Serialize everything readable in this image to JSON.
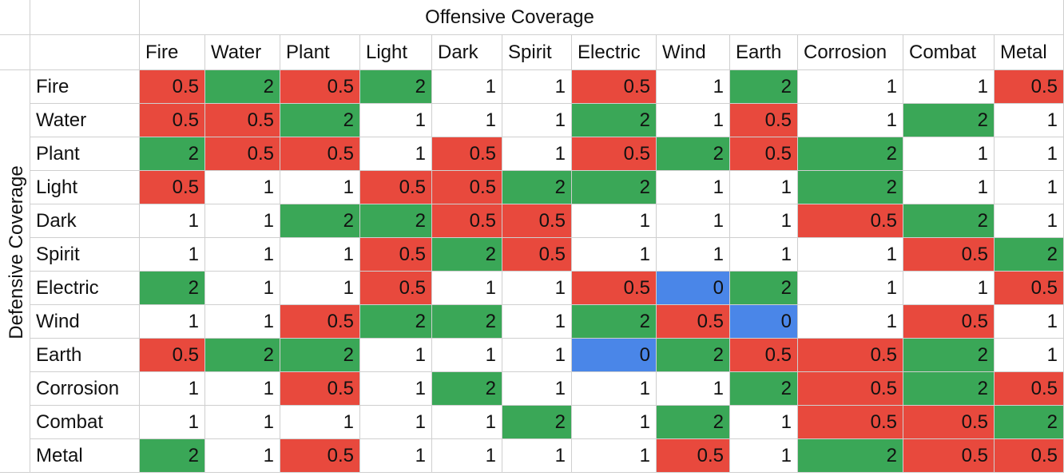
{
  "table": {
    "title": "Offensive Coverage",
    "row_axis_label": "Defensive Coverage",
    "columns": [
      "Fire",
      "Water",
      "Plant",
      "Light",
      "Dark",
      "Spirit",
      "Electric",
      "Wind",
      "Earth",
      "Corrosion",
      "Combat",
      "Metal"
    ],
    "rows": [
      {
        "label": "Fire",
        "values": [
          0.5,
          2,
          0.5,
          2,
          1,
          1,
          0.5,
          1,
          2,
          1,
          1,
          0.5
        ]
      },
      {
        "label": "Water",
        "values": [
          0.5,
          0.5,
          2,
          1,
          1,
          1,
          2,
          1,
          0.5,
          1,
          2,
          1
        ]
      },
      {
        "label": "Plant",
        "values": [
          2,
          0.5,
          0.5,
          1,
          0.5,
          1,
          0.5,
          2,
          0.5,
          2,
          1,
          1
        ]
      },
      {
        "label": "Light",
        "values": [
          0.5,
          1,
          1,
          0.5,
          0.5,
          2,
          2,
          1,
          1,
          2,
          1,
          1
        ]
      },
      {
        "label": "Dark",
        "values": [
          1,
          1,
          2,
          2,
          0.5,
          0.5,
          1,
          1,
          1,
          0.5,
          2,
          1
        ]
      },
      {
        "label": "Spirit",
        "values": [
          1,
          1,
          1,
          0.5,
          2,
          0.5,
          1,
          1,
          1,
          1,
          0.5,
          2
        ]
      },
      {
        "label": "Electric",
        "values": [
          2,
          1,
          1,
          0.5,
          1,
          1,
          0.5,
          0,
          2,
          1,
          1,
          0.5
        ]
      },
      {
        "label": "Wind",
        "values": [
          1,
          1,
          0.5,
          2,
          2,
          1,
          2,
          0.5,
          0,
          1,
          0.5,
          1
        ]
      },
      {
        "label": "Earth",
        "values": [
          0.5,
          2,
          2,
          1,
          1,
          1,
          0,
          2,
          0.5,
          0.5,
          2,
          1
        ]
      },
      {
        "label": "Corrosion",
        "values": [
          1,
          1,
          0.5,
          1,
          2,
          1,
          1,
          1,
          2,
          0.5,
          2,
          0.5
        ]
      },
      {
        "label": "Combat",
        "values": [
          1,
          1,
          1,
          1,
          1,
          2,
          1,
          2,
          1,
          0.5,
          0.5,
          2
        ]
      },
      {
        "label": "Metal",
        "values": [
          2,
          1,
          0.5,
          1,
          1,
          1,
          1,
          0.5,
          1,
          2,
          0.5,
          0.5
        ]
      }
    ]
  },
  "cell_colors": {
    "0": "#4a86e8",
    "0.5": "#e8493d",
    "1": "#ffffff",
    "2": "#3aa757"
  }
}
